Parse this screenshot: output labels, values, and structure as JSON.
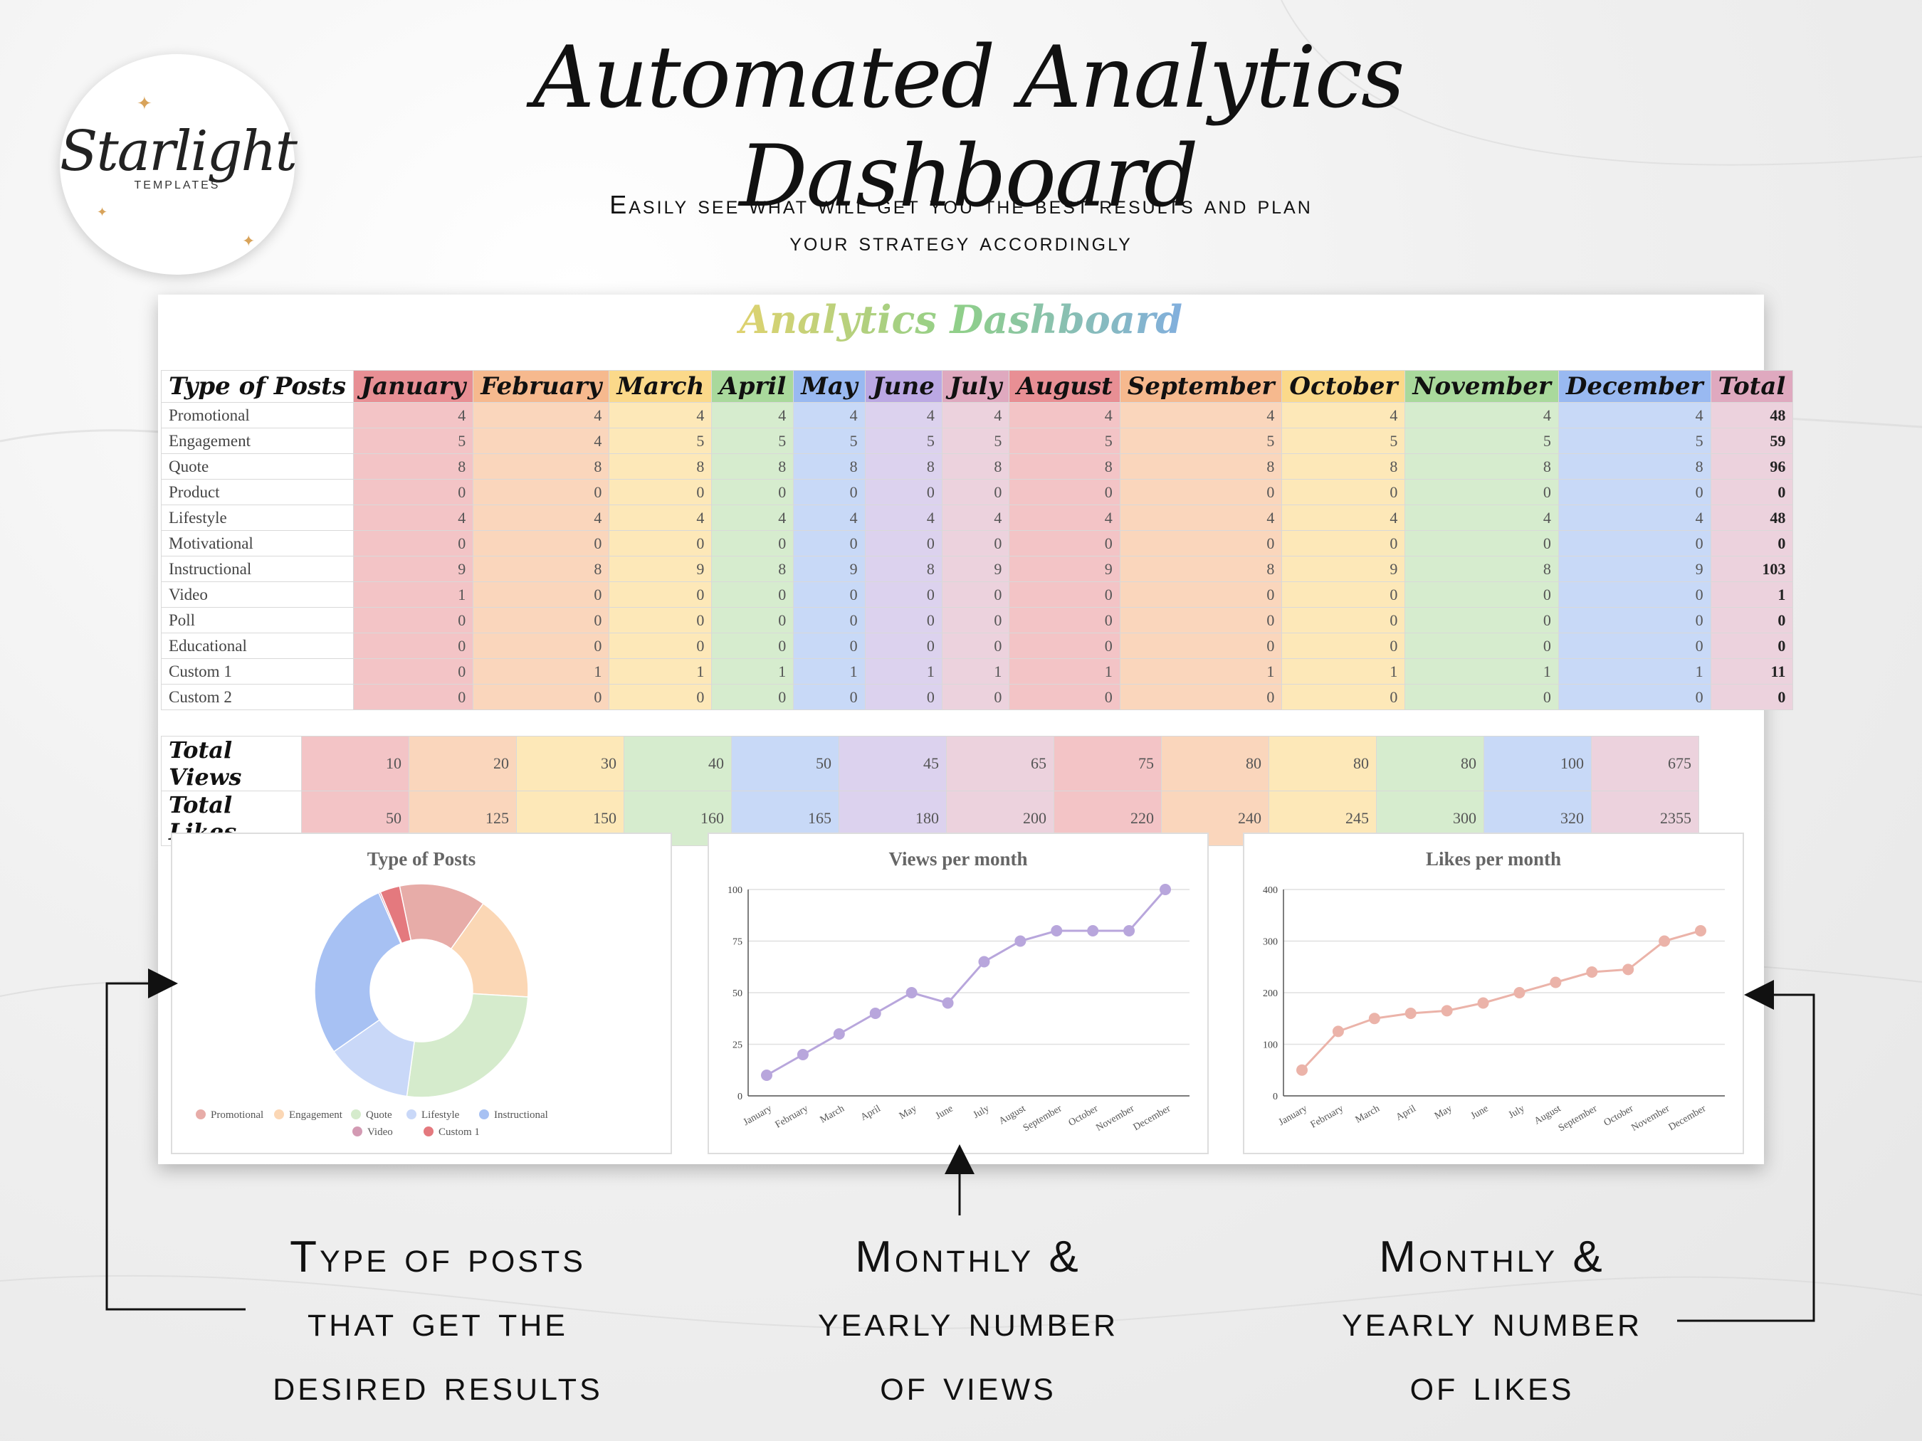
{
  "brand": {
    "name": "Starlight",
    "sub": "TEMPLATES"
  },
  "headline": "Automated Analytics Dashboard",
  "subline_1": "Easily see what will get you the best results and plan",
  "subline_2": "your strategy accordingly",
  "dashboard": {
    "title": "Analytics Dashboard",
    "corner": "Type of Posts",
    "months": [
      "January",
      "February",
      "March",
      "April",
      "May",
      "June",
      "July",
      "August",
      "September",
      "October",
      "November",
      "December"
    ],
    "total_label": "Total",
    "rows": [
      {
        "label": "Promotional",
        "values": [
          4,
          4,
          4,
          4,
          4,
          4,
          4,
          4,
          4,
          4,
          4,
          4
        ],
        "total": 48
      },
      {
        "label": "Engagement",
        "values": [
          5,
          4,
          5,
          5,
          5,
          5,
          5,
          5,
          5,
          5,
          5,
          5
        ],
        "total": 59
      },
      {
        "label": "Quote",
        "values": [
          8,
          8,
          8,
          8,
          8,
          8,
          8,
          8,
          8,
          8,
          8,
          8
        ],
        "total": 96
      },
      {
        "label": "Product",
        "values": [
          0,
          0,
          0,
          0,
          0,
          0,
          0,
          0,
          0,
          0,
          0,
          0
        ],
        "total": 0
      },
      {
        "label": "Lifestyle",
        "values": [
          4,
          4,
          4,
          4,
          4,
          4,
          4,
          4,
          4,
          4,
          4,
          4
        ],
        "total": 48
      },
      {
        "label": "Motivational",
        "values": [
          0,
          0,
          0,
          0,
          0,
          0,
          0,
          0,
          0,
          0,
          0,
          0
        ],
        "total": 0
      },
      {
        "label": "Instructional",
        "values": [
          9,
          8,
          9,
          8,
          9,
          8,
          9,
          9,
          8,
          9,
          8,
          9
        ],
        "total": 103
      },
      {
        "label": "Video",
        "values": [
          1,
          0,
          0,
          0,
          0,
          0,
          0,
          0,
          0,
          0,
          0,
          0
        ],
        "total": 1
      },
      {
        "label": "Poll",
        "values": [
          0,
          0,
          0,
          0,
          0,
          0,
          0,
          0,
          0,
          0,
          0,
          0
        ],
        "total": 0
      },
      {
        "label": "Educational",
        "values": [
          0,
          0,
          0,
          0,
          0,
          0,
          0,
          0,
          0,
          0,
          0,
          0
        ],
        "total": 0
      },
      {
        "label": "Custom 1",
        "values": [
          0,
          1,
          1,
          1,
          1,
          1,
          1,
          1,
          1,
          1,
          1,
          1
        ],
        "total": 11
      },
      {
        "label": "Custom 2",
        "values": [
          0,
          0,
          0,
          0,
          0,
          0,
          0,
          0,
          0,
          0,
          0,
          0
        ],
        "total": 0
      }
    ],
    "views": {
      "label": "Total Views",
      "values": [
        10,
        20,
        30,
        40,
        50,
        45,
        65,
        75,
        80,
        80,
        80,
        100
      ],
      "total": 675
    },
    "likes": {
      "label": "Total Likes",
      "values": [
        50,
        125,
        150,
        160,
        165,
        180,
        200,
        220,
        240,
        245,
        300,
        320
      ],
      "total": 2355
    }
  },
  "chart_data": [
    {
      "type": "pie",
      "title": "Type of Posts",
      "labels": [
        "Promotional",
        "Engagement",
        "Quote",
        "Lifestyle",
        "Instructional",
        "Video",
        "Custom 1"
      ],
      "values": [
        48,
        59,
        96,
        48,
        103,
        1,
        11
      ],
      "colors": [
        "#e7aca8",
        "#fbd7b5",
        "#d5ebcc",
        "#c9d8f8",
        "#a7c1f3",
        "#d39ab3",
        "#e4797e"
      ],
      "legend": "bottom"
    },
    {
      "type": "line",
      "title": "Views per month",
      "categories": [
        "January",
        "February",
        "March",
        "April",
        "May",
        "June",
        "July",
        "August",
        "September",
        "October",
        "November",
        "December"
      ],
      "values": [
        10,
        20,
        30,
        40,
        50,
        45,
        65,
        75,
        80,
        80,
        80,
        100
      ],
      "ylim": [
        0,
        100
      ],
      "yticks": [
        0,
        25,
        50,
        75,
        100
      ],
      "color": "#b8a6dc",
      "grid": true
    },
    {
      "type": "line",
      "title": "Likes per month",
      "categories": [
        "January",
        "February",
        "March",
        "April",
        "May",
        "June",
        "July",
        "August",
        "September",
        "October",
        "November",
        "December"
      ],
      "values": [
        50,
        125,
        150,
        160,
        165,
        180,
        200,
        220,
        240,
        245,
        300,
        320
      ],
      "ylim": [
        0,
        400
      ],
      "yticks": [
        0,
        100,
        200,
        300,
        400
      ],
      "color": "#ebb3a9",
      "grid": true
    }
  ],
  "notes": {
    "posts": [
      "Type of posts",
      "that get the",
      "desired results"
    ],
    "views": [
      "Monthly &",
      "yearly number",
      "of views"
    ],
    "likes": [
      "Monthly &",
      "yearly number",
      "of likes"
    ]
  }
}
